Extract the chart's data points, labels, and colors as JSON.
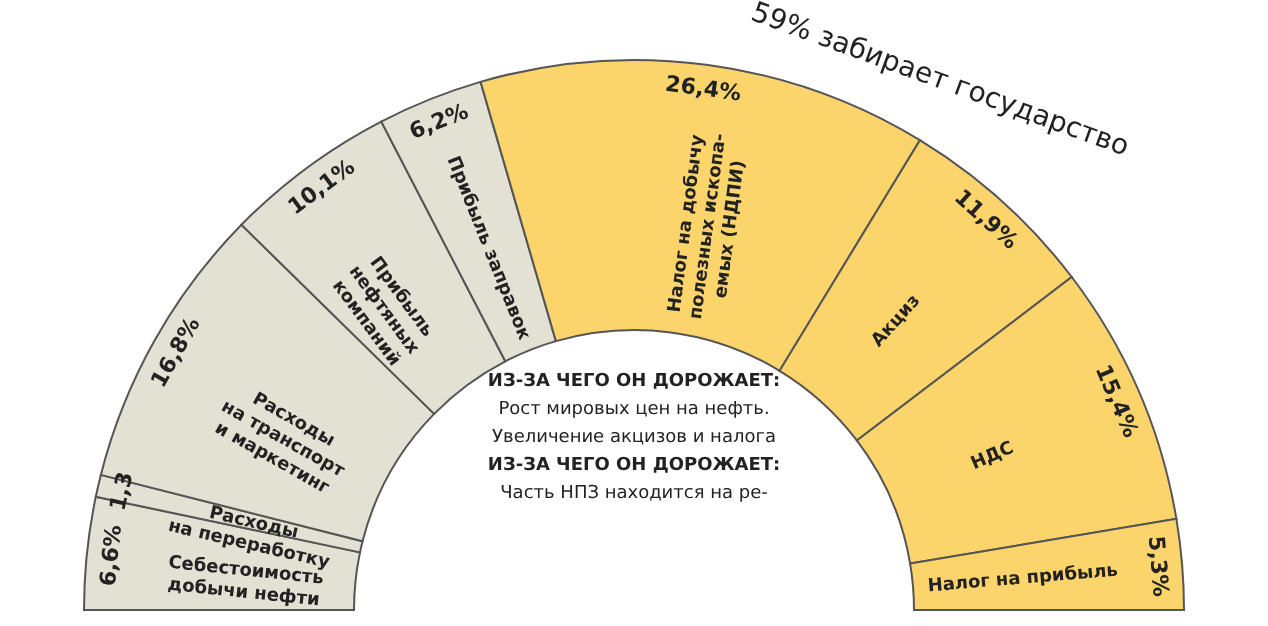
{
  "chart_data": {
    "type": "donut",
    "categories": [
      "Себестоимость\nдобычи нефти",
      "Расходы\nна переработку",
      "Расходы\nна транспорт\nи маркетинг",
      "Прибыль\nнефтяных\nкомпаний",
      "Прибыль заправок",
      "Налог на добычу\nполезных ископа-\nемых (НДПИ)",
      "Акциз",
      "НДС",
      "Налог на прибыль"
    ],
    "values": [
      6.6,
      1.3,
      16.8,
      10.1,
      6.2,
      26.4,
      11.9,
      15.4,
      5.3
    ],
    "colors": [
      "#e3e1d3",
      "#e3e1d3",
      "#e3e1d3",
      "#e3e1d3",
      "#e3e1d3",
      "#fcd46c",
      "#fcd46c",
      "#fcd46c",
      "#fcd46c"
    ],
    "value_labels": [
      "6,6%",
      "1,3",
      "16,8%",
      "10,1%",
      "6,2%",
      "26,4%",
      "11,9%",
      "15,4%",
      "5,3%"
    ],
    "annotations": [
      "59% забирает государство",
      "ИЗ-ЗА ЧЕГО ОН ДОРОЖАЕТ:",
      "Рост мировых цен на нефть.",
      "Увеличение акцизов и налога",
      "ИЗ-ЗА ЧЕГО ОН ДОРОЖАЕТ:",
      "Часть НПЗ находится на ре-"
    ]
  }
}
